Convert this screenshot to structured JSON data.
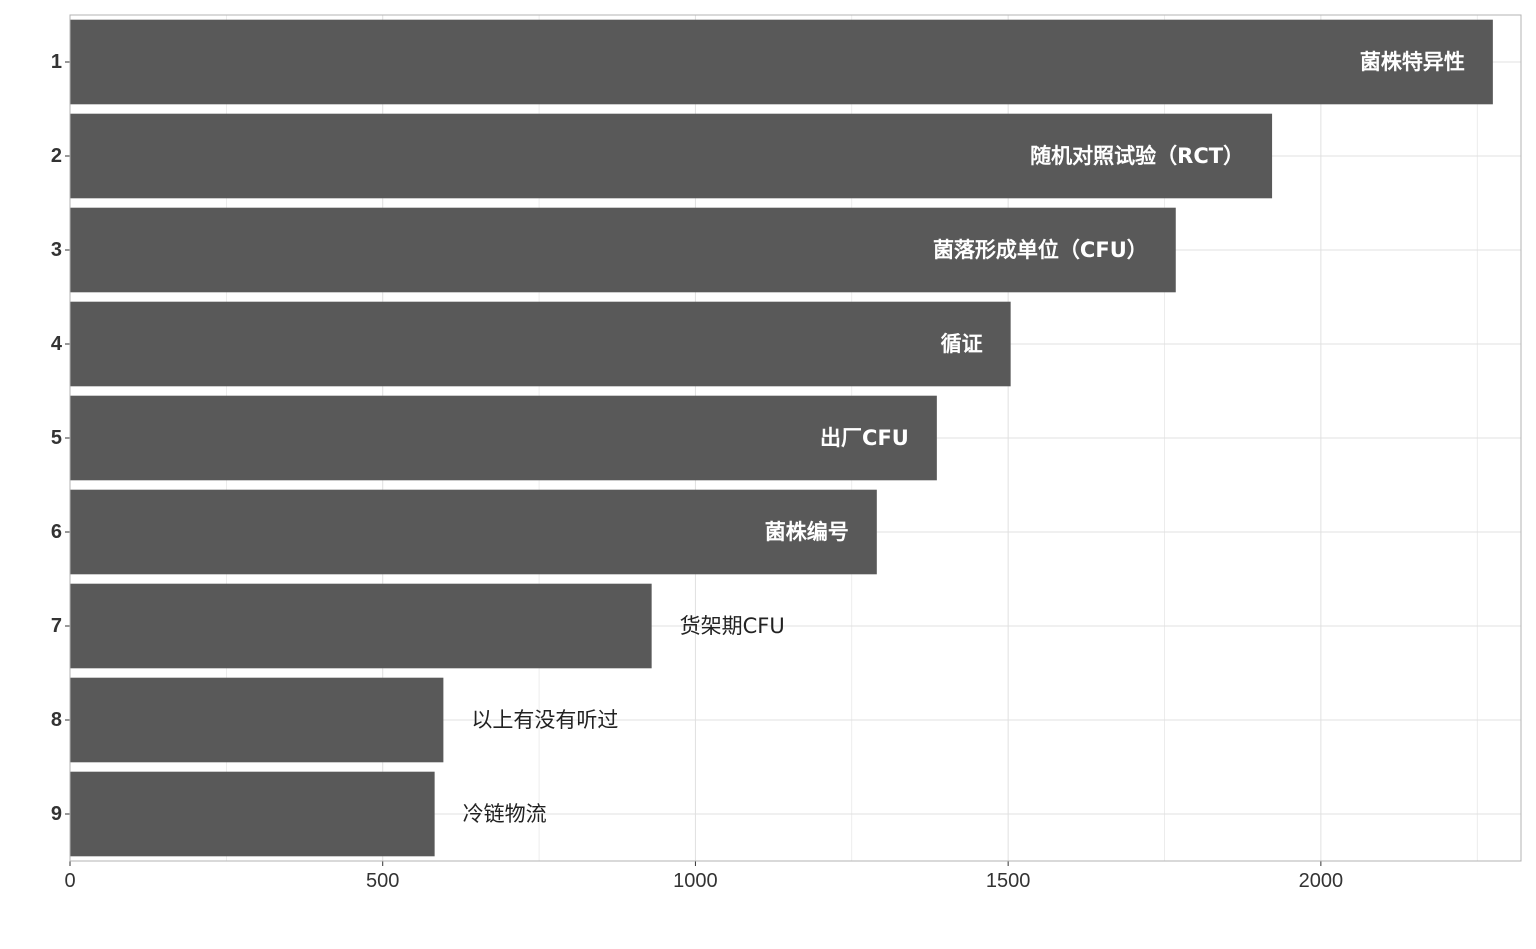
{
  "chart_data": {
    "type": "bar",
    "orientation": "horizontal",
    "categories": [
      "1",
      "2",
      "3",
      "4",
      "5",
      "6",
      "7",
      "8",
      "9"
    ],
    "values": [
      2275,
      1922,
      1768,
      1504,
      1386,
      1290,
      930,
      597,
      583
    ],
    "bar_labels": [
      "菌株特异性",
      "随机对照试验（RCT）",
      "菌落形成单位（CFU）",
      "循证",
      "出厂CFU",
      "菌株编号",
      "货架期CFU",
      "以上有没有听过",
      "冷链物流"
    ],
    "xlim": [
      0,
      2320
    ],
    "x_ticks": [
      0,
      500,
      1000,
      1500,
      2000
    ],
    "x_tick_labels": [
      "0",
      "500",
      "1000",
      "1500",
      "2000"
    ],
    "grid": true,
    "title": "",
    "xlabel": "",
    "ylabel": "",
    "colors": {
      "bar": "#595959",
      "grid": "#e0e0e0",
      "panel_border": "#b3b3b3",
      "label_inside": "#ffffff",
      "label_outside": "#222222"
    }
  }
}
